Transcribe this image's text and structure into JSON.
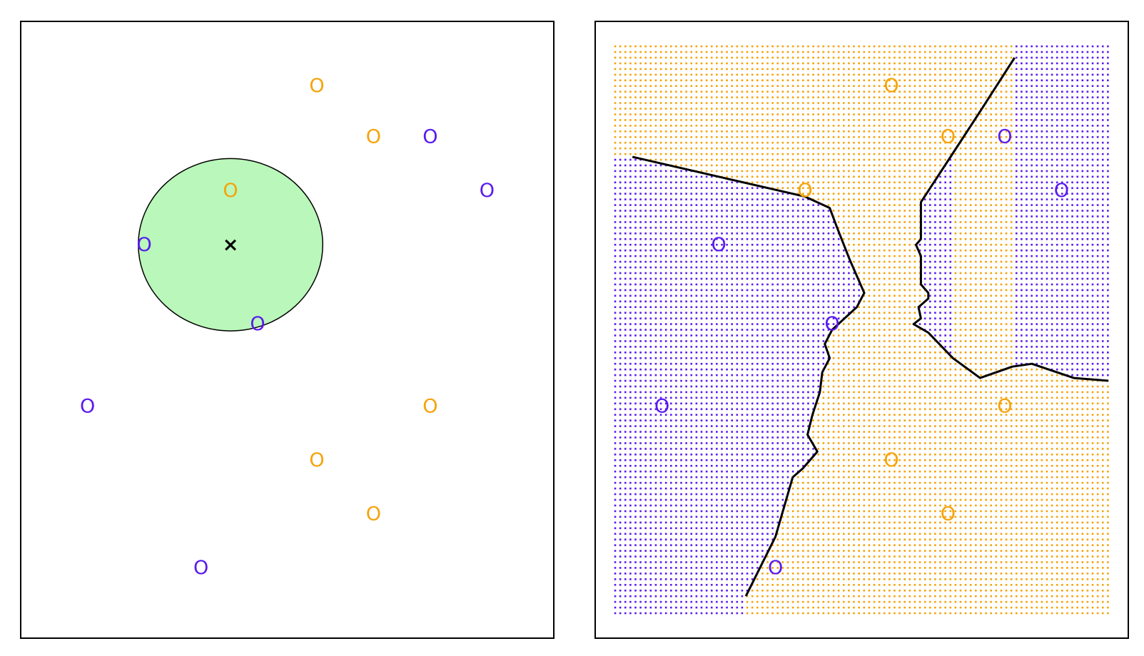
{
  "colors": {
    "class_a": "#F5A30B",
    "class_b": "#5A1AEE",
    "neighborhood_fill": "#BAF7BA",
    "neighborhood_stroke": "#000000",
    "boundary": "#000000",
    "test_point": "#000000"
  },
  "chart_data": [
    {
      "type": "scatter",
      "title": "",
      "xlabel": "",
      "ylabel": "",
      "xlim": [
        0,
        10
      ],
      "ylim": [
        0,
        10
      ],
      "axes_visible": false,
      "grid": false,
      "legend": "none",
      "marker_text": "O",
      "observations": [
        {
          "class": "class_a",
          "x": 5.6,
          "y": 9.3
        },
        {
          "class": "class_a",
          "x": 6.75,
          "y": 8.4
        },
        {
          "class": "class_b",
          "x": 7.9,
          "y": 8.4
        },
        {
          "class": "class_a",
          "x": 3.85,
          "y": 7.45
        },
        {
          "class": "class_b",
          "x": 9.05,
          "y": 7.45
        },
        {
          "class": "class_b",
          "x": 2.1,
          "y": 6.5
        },
        {
          "class": "class_b",
          "x": 4.4,
          "y": 5.1
        },
        {
          "class": "class_b",
          "x": 0.95,
          "y": 3.65
        },
        {
          "class": "class_a",
          "x": 7.9,
          "y": 3.65
        },
        {
          "class": "class_a",
          "x": 5.6,
          "y": 2.7
        },
        {
          "class": "class_a",
          "x": 6.75,
          "y": 1.75
        },
        {
          "class": "class_b",
          "x": 3.25,
          "y": 0.8
        }
      ],
      "test_point": {
        "x": 3.85,
        "y": 6.5,
        "marker": "×"
      },
      "neighborhood": {
        "center_x": 3.85,
        "center_y": 6.5,
        "radius_x": 1.87,
        "radius_y": 1.52,
        "k": 3
      }
    },
    {
      "type": "scatter",
      "title": "",
      "xlabel": "",
      "ylabel": "",
      "xlim": [
        0,
        10
      ],
      "ylim": [
        0,
        10
      ],
      "axes_visible": false,
      "grid": false,
      "legend": "none",
      "marker_text": "O",
      "background": "dotted grid colored by predicted class",
      "observations": [
        {
          "class": "class_a",
          "x": 5.6,
          "y": 9.3
        },
        {
          "class": "class_a",
          "x": 6.75,
          "y": 8.4
        },
        {
          "class": "class_b",
          "x": 7.9,
          "y": 8.4
        },
        {
          "class": "class_a",
          "x": 3.85,
          "y": 7.45
        },
        {
          "class": "class_b",
          "x": 9.05,
          "y": 7.45
        },
        {
          "class": "class_b",
          "x": 2.1,
          "y": 6.5
        },
        {
          "class": "class_b",
          "x": 4.4,
          "y": 5.1
        },
        {
          "class": "class_b",
          "x": 0.95,
          "y": 3.65
        },
        {
          "class": "class_a",
          "x": 7.9,
          "y": 3.65
        },
        {
          "class": "class_a",
          "x": 5.6,
          "y": 2.7
        },
        {
          "class": "class_a",
          "x": 6.75,
          "y": 1.75
        },
        {
          "class": "class_b",
          "x": 3.25,
          "y": 0.8
        }
      ],
      "decision_boundary": [
        {
          "name": "left",
          "points": [
            [
              0.35,
              8.05
            ],
            [
              3.85,
              7.35
            ],
            [
              4.35,
              7.15
            ],
            [
              4.5,
              6.8
            ],
            [
              4.75,
              6.25
            ],
            [
              5.05,
              5.65
            ],
            [
              4.9,
              5.4
            ],
            [
              4.4,
              5.0
            ],
            [
              4.25,
              4.75
            ],
            [
              4.35,
              4.5
            ],
            [
              4.2,
              4.25
            ],
            [
              4.15,
              3.9
            ],
            [
              4.0,
              3.5
            ],
            [
              3.9,
              3.15
            ],
            [
              4.1,
              2.85
            ],
            [
              3.8,
              2.55
            ],
            [
              3.6,
              2.4
            ],
            [
              3.25,
              1.35
            ],
            [
              2.65,
              0.3
            ]
          ]
        },
        {
          "name": "right",
          "points": [
            [
              8.1,
              9.8
            ],
            [
              7.4,
              8.85
            ],
            [
              6.8,
              8.05
            ],
            [
              6.2,
              7.25
            ],
            [
              6.2,
              6.6
            ],
            [
              6.1,
              6.5
            ],
            [
              6.2,
              6.3
            ],
            [
              6.2,
              5.8
            ],
            [
              6.35,
              5.65
            ],
            [
              6.35,
              5.55
            ],
            [
              6.15,
              5.4
            ],
            [
              6.2,
              5.2
            ],
            [
              6.05,
              5.1
            ],
            [
              6.35,
              4.95
            ],
            [
              6.85,
              4.5
            ],
            [
              7.4,
              4.15
            ],
            [
              8.05,
              4.35
            ],
            [
              8.45,
              4.4
            ],
            [
              9.3,
              4.15
            ],
            [
              10.0,
              4.1
            ]
          ]
        }
      ]
    }
  ]
}
